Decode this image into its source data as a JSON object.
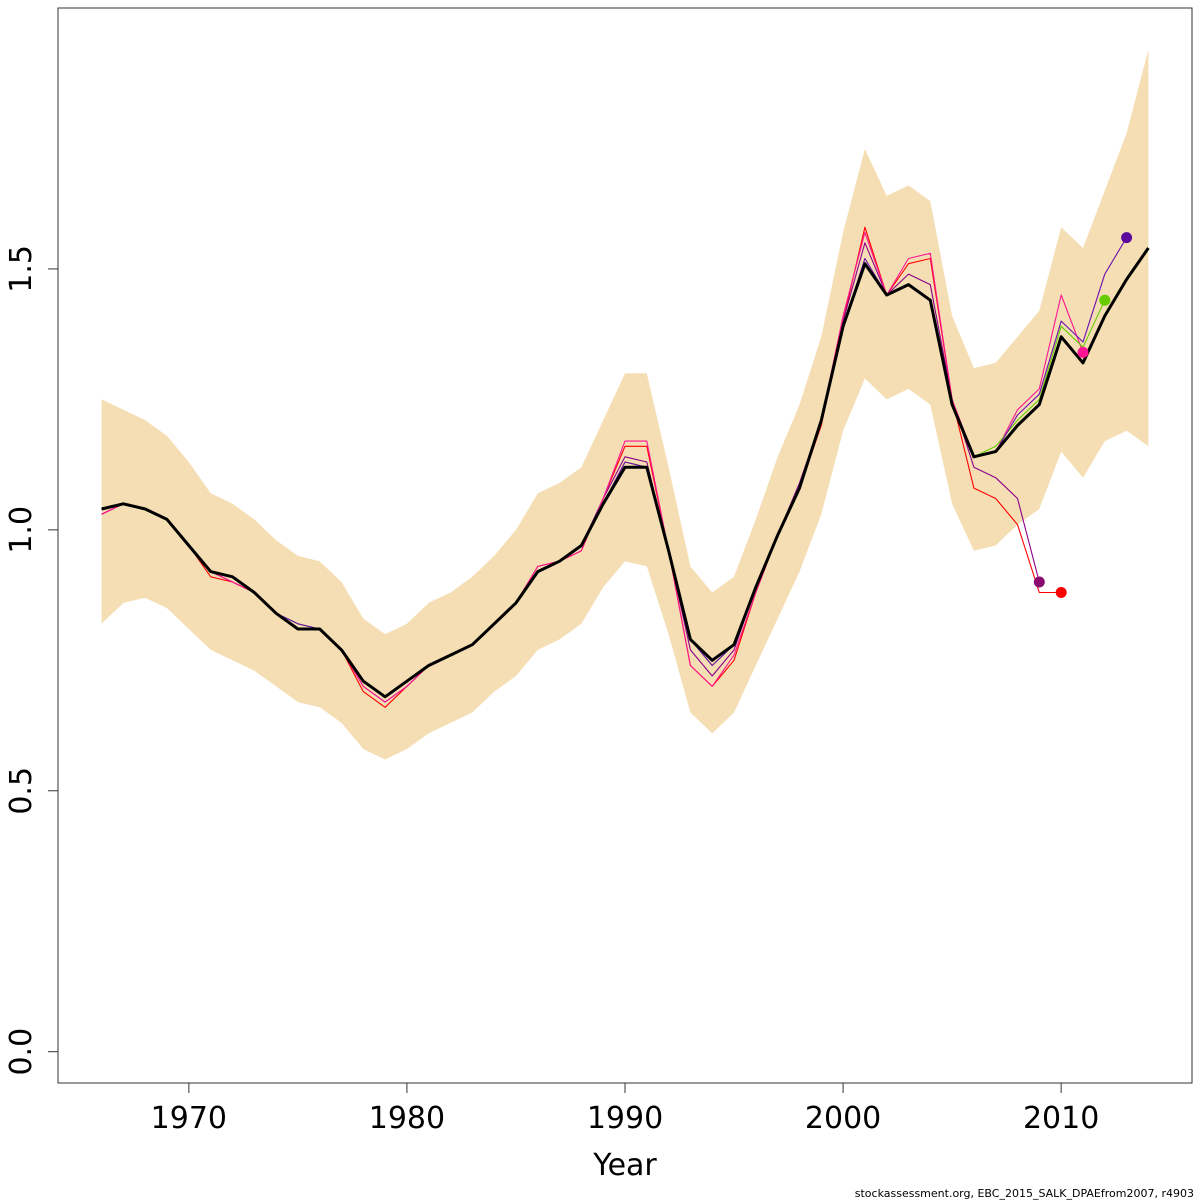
{
  "chart_data": {
    "type": "line",
    "title": "",
    "xlabel": "Year",
    "ylabel": "",
    "xlim": [
      1964,
      2016
    ],
    "ylim": [
      -0.06,
      2.0
    ],
    "x_ticks": [
      {
        "value": 1970,
        "label": "1970"
      },
      {
        "value": 1980,
        "label": "1980"
      },
      {
        "value": 1990,
        "label": "1990"
      },
      {
        "value": 2000,
        "label": "2000"
      },
      {
        "value": 2010,
        "label": "2010"
      }
    ],
    "y_ticks": [
      {
        "value": 0.0,
        "label": "0.0"
      },
      {
        "value": 0.5,
        "label": "0.5"
      },
      {
        "value": 1.0,
        "label": "1.0"
      },
      {
        "value": 1.5,
        "label": "1.5"
      }
    ],
    "grid": false,
    "confidence_band": {
      "color": "#f5deb3",
      "x": [
        1966,
        1967,
        1968,
        1969,
        1970,
        1971,
        1972,
        1973,
        1974,
        1975,
        1976,
        1977,
        1978,
        1979,
        1980,
        1981,
        1982,
        1983,
        1984,
        1985,
        1986,
        1987,
        1988,
        1989,
        1990,
        1991,
        1992,
        1993,
        1994,
        1995,
        1996,
        1997,
        1998,
        1999,
        2000,
        2001,
        2002,
        2003,
        2004,
        2005,
        2006,
        2007,
        2008,
        2009,
        2010,
        2011,
        2012,
        2013,
        2014
      ],
      "lower": [
        0.82,
        0.86,
        0.87,
        0.85,
        0.81,
        0.77,
        0.75,
        0.73,
        0.7,
        0.67,
        0.66,
        0.63,
        0.58,
        0.56,
        0.58,
        0.61,
        0.63,
        0.65,
        0.69,
        0.72,
        0.77,
        0.79,
        0.82,
        0.89,
        0.94,
        0.93,
        0.8,
        0.65,
        0.61,
        0.65,
        0.74,
        0.83,
        0.92,
        1.03,
        1.19,
        1.29,
        1.25,
        1.27,
        1.24,
        1.05,
        0.96,
        0.97,
        1.01,
        1.04,
        1.15,
        1.1,
        1.17,
        1.19,
        1.16
      ],
      "upper": [
        1.25,
        1.23,
        1.21,
        1.18,
        1.13,
        1.07,
        1.05,
        1.02,
        0.98,
        0.95,
        0.94,
        0.9,
        0.83,
        0.8,
        0.82,
        0.86,
        0.88,
        0.91,
        0.95,
        1.0,
        1.07,
        1.09,
        1.12,
        1.21,
        1.3,
        1.3,
        1.12,
        0.93,
        0.88,
        0.91,
        1.02,
        1.14,
        1.24,
        1.37,
        1.57,
        1.73,
        1.64,
        1.66,
        1.63,
        1.41,
        1.31,
        1.32,
        1.37,
        1.42,
        1.58,
        1.54,
        1.65,
        1.76,
        1.92
      ]
    },
    "series": [
      {
        "color": "#ff0000",
        "end_color": "#ff0000",
        "x": [
          1966,
          1967,
          1968,
          1969,
          1970,
          1971,
          1972,
          1973,
          1974,
          1975,
          1976,
          1977,
          1978,
          1979,
          1980,
          1981,
          1982,
          1983,
          1984,
          1985,
          1986,
          1987,
          1988,
          1989,
          1990,
          1991,
          1992,
          1993,
          1994,
          1995,
          1996,
          1997,
          1998,
          1999,
          2000,
          2001,
          2002,
          2003,
          2004,
          2005,
          2006,
          2007,
          2008,
          2009,
          2010
        ],
        "y": [
          1.03,
          1.05,
          1.04,
          1.02,
          0.97,
          0.91,
          0.9,
          0.88,
          0.84,
          0.81,
          0.81,
          0.77,
          0.69,
          0.66,
          0.7,
          0.74,
          0.76,
          0.78,
          0.82,
          0.86,
          0.93,
          0.94,
          0.96,
          1.06,
          1.16,
          1.16,
          0.96,
          0.74,
          0.7,
          0.75,
          0.88,
          0.99,
          1.08,
          1.2,
          1.4,
          1.58,
          1.45,
          1.51,
          1.52,
          1.25,
          1.08,
          1.06,
          1.01,
          0.88,
          0.88
        ]
      },
      {
        "color": "#8b008b",
        "end_color": "#8b0a6e",
        "x": [
          1966,
          1967,
          1968,
          1969,
          1970,
          1971,
          1972,
          1973,
          1974,
          1975,
          1976,
          1977,
          1978,
          1979,
          1980,
          1981,
          1982,
          1983,
          1984,
          1985,
          1986,
          1987,
          1988,
          1989,
          1990,
          1991,
          1992,
          1993,
          1994,
          1995,
          1996,
          1997,
          1998,
          1999,
          2000,
          2001,
          2002,
          2003,
          2004,
          2005,
          2006,
          2007,
          2008,
          2009
        ],
        "y": [
          1.03,
          1.05,
          1.04,
          1.02,
          0.97,
          0.92,
          0.9,
          0.88,
          0.84,
          0.81,
          0.81,
          0.77,
          0.7,
          0.67,
          0.7,
          0.74,
          0.76,
          0.78,
          0.82,
          0.86,
          0.92,
          0.94,
          0.97,
          1.06,
          1.14,
          1.13,
          0.96,
          0.77,
          0.72,
          0.77,
          0.89,
          0.99,
          1.09,
          1.21,
          1.4,
          1.55,
          1.45,
          1.49,
          1.47,
          1.25,
          1.12,
          1.1,
          1.06,
          0.9
        ]
      },
      {
        "color": "#ff1493",
        "end_color": "#ff1493",
        "x": [
          1966,
          1967,
          1968,
          1969,
          1970,
          1971,
          1972,
          1973,
          1974,
          1975,
          1976,
          1977,
          1978,
          1979,
          1980,
          1981,
          1982,
          1983,
          1984,
          1985,
          1986,
          1987,
          1988,
          1989,
          1990,
          1991,
          1992,
          1993,
          1994,
          1995,
          1996,
          1997,
          1998,
          1999,
          2000,
          2001,
          2002,
          2003,
          2004,
          2005,
          2006,
          2007,
          2008,
          2009,
          2010,
          2011
        ],
        "y": [
          1.03,
          1.05,
          1.04,
          1.02,
          0.97,
          0.92,
          0.9,
          0.88,
          0.84,
          0.81,
          0.81,
          0.77,
          0.7,
          0.67,
          0.7,
          0.74,
          0.76,
          0.78,
          0.82,
          0.86,
          0.93,
          0.94,
          0.96,
          1.06,
          1.17,
          1.17,
          0.96,
          0.74,
          0.7,
          0.76,
          0.88,
          0.99,
          1.08,
          1.21,
          1.41,
          1.57,
          1.45,
          1.52,
          1.53,
          1.25,
          1.14,
          1.15,
          1.23,
          1.27,
          1.45,
          1.34
        ]
      },
      {
        "color": "#66cc00",
        "end_color": "#66cc00",
        "x": [
          1966,
          1967,
          1968,
          1969,
          1970,
          1971,
          1972,
          1973,
          1974,
          1975,
          1976,
          1977,
          1978,
          1979,
          1980,
          1981,
          1982,
          1983,
          1984,
          1985,
          1986,
          1987,
          1988,
          1989,
          1990,
          1991,
          1992,
          1993,
          1994,
          1995,
          1996,
          1997,
          1998,
          1999,
          2000,
          2001,
          2002,
          2003,
          2004,
          2005,
          2006,
          2007,
          2008,
          2009,
          2010,
          2011,
          2012
        ],
        "y": [
          1.04,
          1.05,
          1.04,
          1.02,
          0.97,
          0.92,
          0.91,
          0.88,
          0.84,
          0.82,
          0.81,
          0.77,
          0.71,
          0.68,
          0.71,
          0.74,
          0.76,
          0.78,
          0.82,
          0.86,
          0.92,
          0.94,
          0.97,
          1.05,
          1.13,
          1.12,
          0.96,
          0.79,
          0.74,
          0.78,
          0.89,
          0.99,
          1.08,
          1.21,
          1.39,
          1.51,
          1.45,
          1.47,
          1.44,
          1.24,
          1.14,
          1.16,
          1.21,
          1.25,
          1.39,
          1.35,
          1.44
        ]
      },
      {
        "color": "#6a0dad",
        "end_color": "#5b0a9c",
        "x": [
          1966,
          1967,
          1968,
          1969,
          1970,
          1971,
          1972,
          1973,
          1974,
          1975,
          1976,
          1977,
          1978,
          1979,
          1980,
          1981,
          1982,
          1983,
          1984,
          1985,
          1986,
          1987,
          1988,
          1989,
          1990,
          1991,
          1992,
          1993,
          1994,
          1995,
          1996,
          1997,
          1998,
          1999,
          2000,
          2001,
          2002,
          2003,
          2004,
          2005,
          2006,
          2007,
          2008,
          2009,
          2010,
          2011,
          2012,
          2013
        ],
        "y": [
          1.04,
          1.05,
          1.04,
          1.02,
          0.97,
          0.92,
          0.91,
          0.88,
          0.84,
          0.82,
          0.81,
          0.77,
          0.71,
          0.68,
          0.71,
          0.74,
          0.76,
          0.78,
          0.82,
          0.86,
          0.92,
          0.94,
          0.97,
          1.05,
          1.13,
          1.12,
          0.96,
          0.79,
          0.74,
          0.78,
          0.89,
          0.99,
          1.08,
          1.21,
          1.39,
          1.52,
          1.45,
          1.47,
          1.44,
          1.24,
          1.14,
          1.15,
          1.22,
          1.26,
          1.4,
          1.36,
          1.49,
          1.56
        ]
      },
      {
        "color": "#000000",
        "end_color": "",
        "bold": true,
        "x": [
          1966,
          1967,
          1968,
          1969,
          1970,
          1971,
          1972,
          1973,
          1974,
          1975,
          1976,
          1977,
          1978,
          1979,
          1980,
          1981,
          1982,
          1983,
          1984,
          1985,
          1986,
          1987,
          1988,
          1989,
          1990,
          1991,
          1992,
          1993,
          1994,
          1995,
          1996,
          1997,
          1998,
          1999,
          2000,
          2001,
          2002,
          2003,
          2004,
          2005,
          2006,
          2007,
          2008,
          2009,
          2010,
          2011,
          2012,
          2013,
          2014
        ],
        "y": [
          1.04,
          1.05,
          1.04,
          1.02,
          0.97,
          0.92,
          0.91,
          0.88,
          0.84,
          0.81,
          0.81,
          0.77,
          0.71,
          0.68,
          0.71,
          0.74,
          0.76,
          0.78,
          0.82,
          0.86,
          0.92,
          0.94,
          0.97,
          1.05,
          1.12,
          1.12,
          0.96,
          0.79,
          0.75,
          0.78,
          0.89,
          0.99,
          1.08,
          1.21,
          1.39,
          1.51,
          1.45,
          1.47,
          1.44,
          1.24,
          1.14,
          1.15,
          1.2,
          1.24,
          1.37,
          1.32,
          1.41,
          1.48,
          1.54
        ]
      }
    ]
  },
  "footer": {
    "note": "stockassessment.org, EBC_2015_SALK_DPAEfrom2007, r4903"
  }
}
